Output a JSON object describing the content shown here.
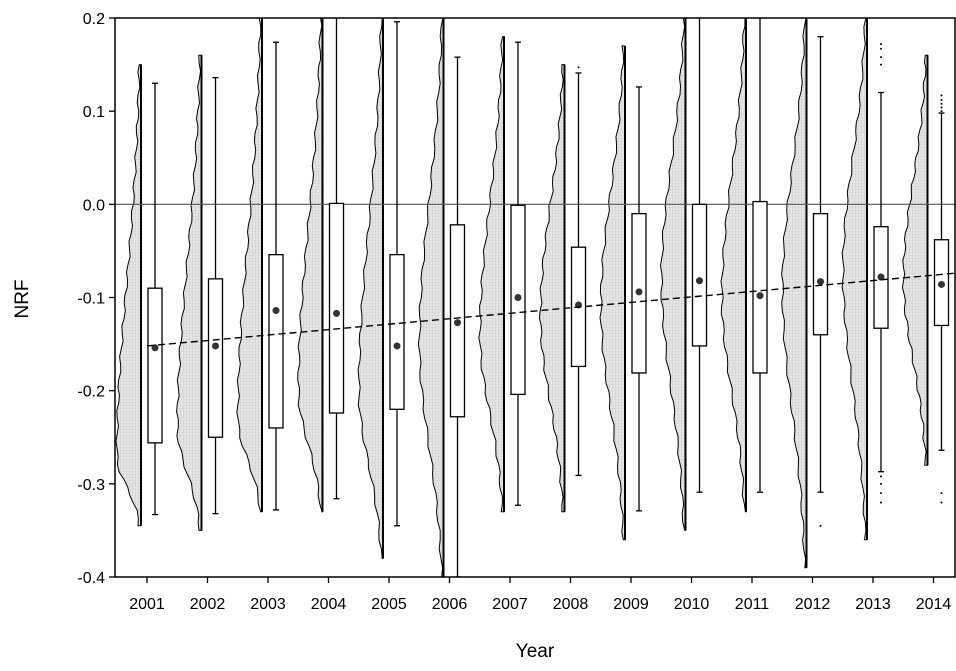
{
  "chart_data": {
    "type": "box",
    "title": "",
    "xlabel": "Year",
    "ylabel": "NRF",
    "ylim": [
      -0.4,
      0.2
    ],
    "yticks": [
      "0.2",
      "0.1",
      "0.0",
      "-0.1",
      "-0.2",
      "-0.3",
      "-0.4"
    ],
    "ytick_values": [
      0.2,
      0.1,
      0.0,
      -0.1,
      -0.2,
      -0.3,
      -0.4
    ],
    "grid": false,
    "reference_line_y": 0.0,
    "categories": [
      "2001",
      "2002",
      "2003",
      "2004",
      "2005",
      "2006",
      "2007",
      "2008",
      "2009",
      "2010",
      "2011",
      "2012",
      "2013",
      "2014"
    ],
    "boxes": [
      {
        "year": "2001",
        "whisker_low": -0.333,
        "q1": -0.256,
        "q3": -0.09,
        "whisker_high": 0.13,
        "mean": -0.154,
        "outliers": []
      },
      {
        "year": "2002",
        "whisker_low": -0.332,
        "q1": -0.25,
        "q3": -0.08,
        "whisker_high": 0.136,
        "mean": -0.152,
        "outliers": []
      },
      {
        "year": "2003",
        "whisker_low": -0.328,
        "q1": -0.24,
        "q3": -0.054,
        "whisker_high": 0.174,
        "mean": -0.114,
        "outliers": []
      },
      {
        "year": "2004",
        "whisker_low": -0.316,
        "q1": -0.224,
        "q3": 0.001,
        "whisker_high": 0.2,
        "mean": -0.117,
        "outliers": []
      },
      {
        "year": "2005",
        "whisker_low": -0.345,
        "q1": -0.22,
        "q3": -0.054,
        "whisker_high": 0.196,
        "mean": -0.152,
        "outliers": []
      },
      {
        "year": "2006",
        "whisker_low": -0.4,
        "q1": -0.228,
        "q3": -0.022,
        "whisker_high": 0.158,
        "mean": -0.127,
        "outliers": []
      },
      {
        "year": "2007",
        "whisker_low": -0.323,
        "q1": -0.204,
        "q3": -0.001,
        "whisker_high": 0.174,
        "mean": -0.1,
        "outliers": []
      },
      {
        "year": "2008",
        "whisker_low": -0.291,
        "q1": -0.174,
        "q3": -0.046,
        "whisker_high": 0.141,
        "mean": -0.108,
        "outliers": [
          0.147
        ]
      },
      {
        "year": "2009",
        "whisker_low": -0.329,
        "q1": -0.181,
        "q3": -0.01,
        "whisker_high": 0.126,
        "mean": -0.094,
        "outliers": []
      },
      {
        "year": "2010",
        "whisker_low": -0.309,
        "q1": -0.152,
        "q3": 0.0,
        "whisker_high": 0.2,
        "mean": -0.082,
        "outliers": []
      },
      {
        "year": "2011",
        "whisker_low": -0.309,
        "q1": -0.181,
        "q3": 0.003,
        "whisker_high": 0.2,
        "mean": -0.098,
        "outliers": []
      },
      {
        "year": "2012",
        "whisker_low": -0.309,
        "q1": -0.14,
        "q3": -0.01,
        "whisker_high": 0.18,
        "mean": -0.083,
        "outliers": [
          -0.345
        ]
      },
      {
        "year": "2013",
        "whisker_low": -0.287,
        "q1": -0.133,
        "q3": -0.024,
        "whisker_high": 0.12,
        "mean": -0.078,
        "outliers": [
          0.15,
          0.158,
          0.167,
          0.172,
          -0.292,
          -0.3,
          -0.31,
          -0.32
        ]
      },
      {
        "year": "2014",
        "whisker_low": -0.264,
        "q1": -0.13,
        "q3": -0.038,
        "whisker_high": 0.098,
        "mean": -0.086,
        "outliers": [
          0.1,
          0.104,
          0.108,
          0.112,
          0.117,
          -0.31,
          -0.32
        ]
      }
    ],
    "densities": [
      {
        "year": "2001",
        "ymin": -0.345,
        "ymax": 0.15,
        "peak": -0.27
      },
      {
        "year": "2002",
        "ymin": -0.35,
        "ymax": 0.16,
        "peak": -0.24
      },
      {
        "year": "2003",
        "ymin": -0.33,
        "ymax": 0.2,
        "peak": -0.23
      },
      {
        "year": "2004",
        "ymin": -0.33,
        "ymax": 0.2,
        "peak": -0.2
      },
      {
        "year": "2005",
        "ymin": -0.38,
        "ymax": 0.2,
        "peak": -0.2
      },
      {
        "year": "2006",
        "ymin": -0.4,
        "ymax": 0.2,
        "peak": -0.15
      },
      {
        "year": "2007",
        "ymin": -0.33,
        "ymax": 0.18,
        "peak": -0.14
      },
      {
        "year": "2008",
        "ymin": -0.33,
        "ymax": 0.15,
        "peak": -0.12
      },
      {
        "year": "2009",
        "ymin": -0.36,
        "ymax": 0.17,
        "peak": -0.11
      },
      {
        "year": "2010",
        "ymin": -0.35,
        "ymax": 0.2,
        "peak": -0.08
      },
      {
        "year": "2011",
        "ymin": -0.33,
        "ymax": 0.2,
        "peak": -0.1
      },
      {
        "year": "2012",
        "ymin": -0.39,
        "ymax": 0.2,
        "peak": -0.09
      },
      {
        "year": "2013",
        "ymin": -0.36,
        "ymax": 0.2,
        "peak": -0.07
      },
      {
        "year": "2014",
        "ymin": -0.28,
        "ymax": 0.16,
        "peak": -0.08
      }
    ],
    "trend_line": {
      "x": [
        "2001",
        "2014"
      ],
      "y": [
        -0.152,
        -0.076
      ],
      "style": "dashed"
    },
    "colors": {
      "density_fill": "#d9d9d9",
      "box_fill": "#ffffff",
      "line": "#000000",
      "mean_dot": "#333333",
      "reference_line": "#555555"
    }
  }
}
